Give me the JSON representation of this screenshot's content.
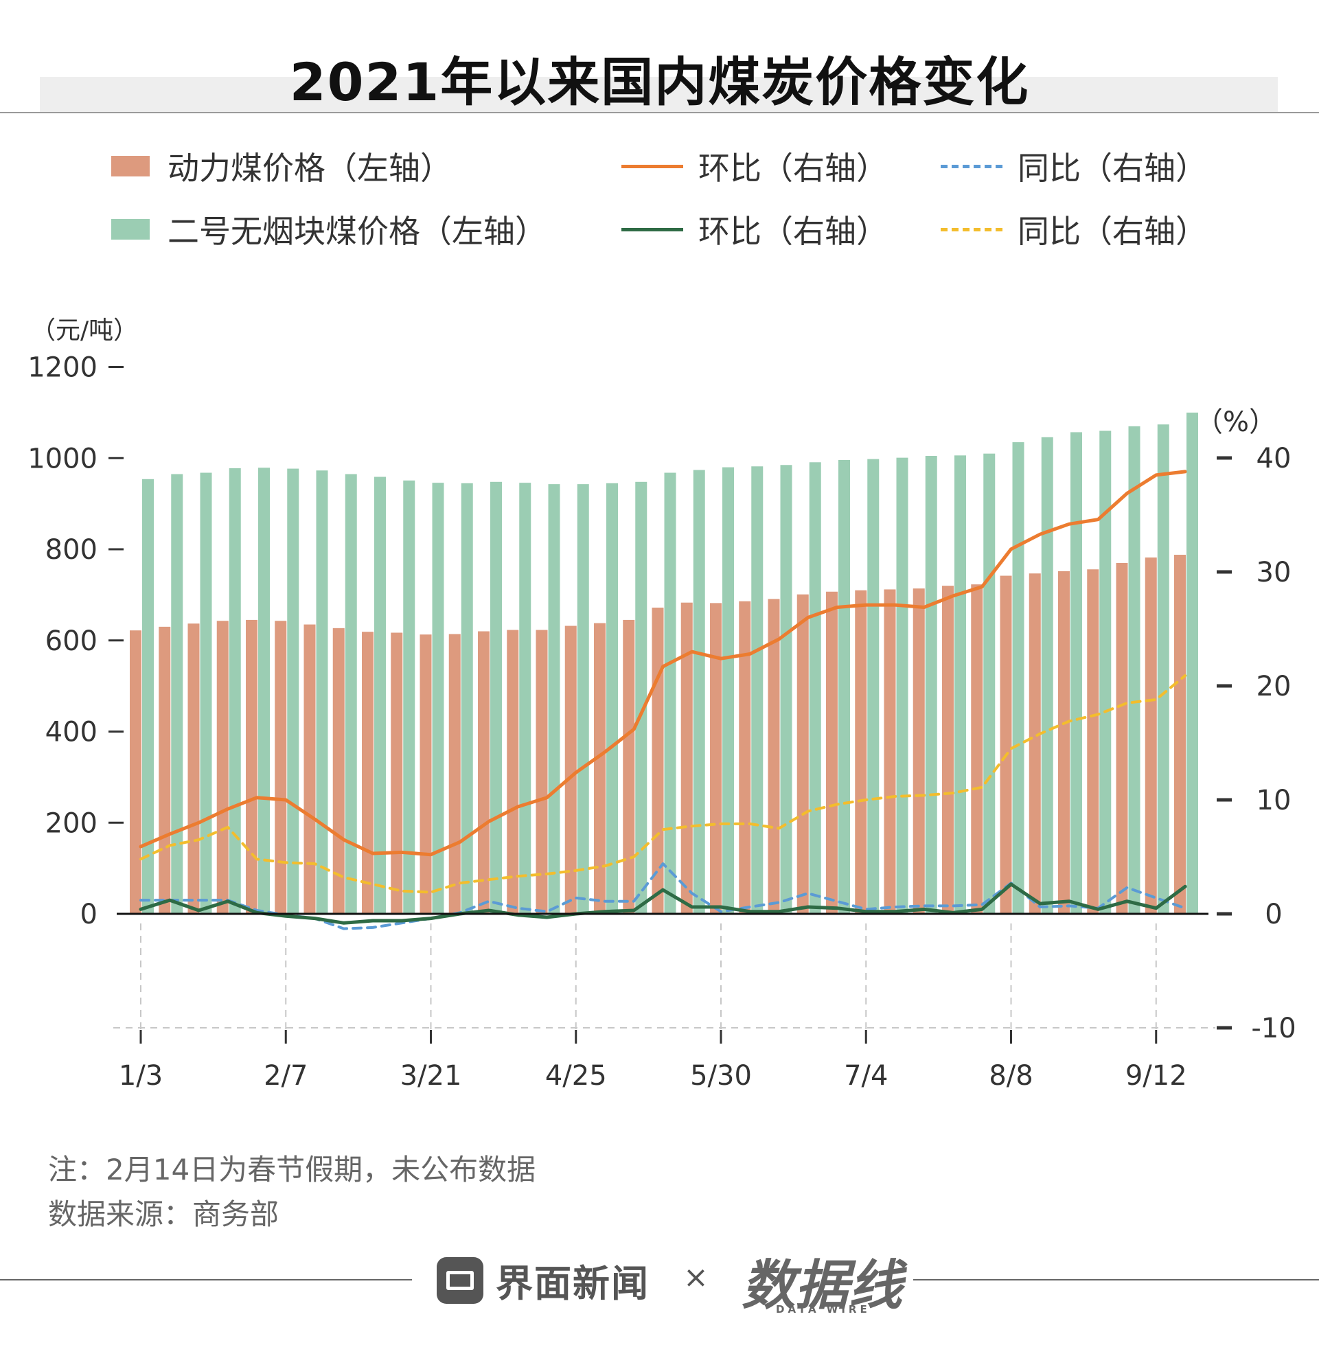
{
  "title": "2021年以来国内煤炭价格变化",
  "legend": {
    "item1": "动力煤价格（左轴）",
    "item2": "环比（右轴）",
    "item3": "同比（右轴）",
    "item4": "二号无烟块煤价格（左轴）",
    "item5": "环比（右轴）",
    "item6": "同比（右轴）"
  },
  "colors": {
    "power_bar": "#dd9a7e",
    "anthracite_bar": "#9bcdb3",
    "power_huanbi": "#ec7c30",
    "power_tongbi": "#5b9bd5",
    "anth_huanbi": "#2e6b45",
    "anth_tongbi": "#f3bd2d",
    "title_band": "#eeeeee"
  },
  "chart_data": {
    "type": "bar",
    "left_axis": {
      "unit": "（元/吨）",
      "ticks": [
        0,
        200,
        400,
        600,
        800,
        1000,
        1200
      ],
      "ylim": [
        0,
        1200
      ]
    },
    "right_axis": {
      "unit": "（%）",
      "ticks": [
        -10,
        0,
        10,
        20,
        30,
        40
      ],
      "ylim": [
        -10,
        40
      ]
    },
    "x_tick_labels": [
      "1/3",
      "2/7",
      "3/21",
      "4/25",
      "5/30",
      "7/4",
      "8/8",
      "9/12"
    ],
    "x_tick_indices": [
      0,
      5,
      10,
      15,
      20,
      25,
      30,
      35
    ],
    "series": [
      {
        "name": "动力煤价格（左轴）",
        "kind": "bar",
        "axis": "left",
        "values": [
          622,
          630,
          637,
          643,
          645,
          643,
          635,
          627,
          619,
          617,
          613,
          614,
          620,
          623,
          623,
          632,
          638,
          645,
          672,
          683,
          682,
          686,
          691,
          701,
          707,
          710,
          712,
          714,
          720,
          723,
          742,
          747,
          752,
          756,
          770,
          782,
          788
        ]
      },
      {
        "name": "二号无烟块煤价格（左轴）",
        "kind": "bar",
        "axis": "left",
        "values": [
          954,
          965,
          968,
          978,
          979,
          977,
          973,
          965,
          959,
          951,
          946,
          945,
          948,
          946,
          943,
          943,
          945,
          948,
          968,
          974,
          980,
          982,
          985,
          991,
          996,
          998,
          1001,
          1005,
          1006,
          1010,
          1035,
          1046,
          1057,
          1060,
          1070,
          1074,
          1100
        ]
      },
      {
        "name": "环比（右轴）",
        "kind": "line",
        "axis": "right",
        "values": [
          5.9,
          7.0,
          8.0,
          9.2,
          10.2,
          10.0,
          8.3,
          6.5,
          5.3,
          5.4,
          5.2,
          6.3,
          8.1,
          9.4,
          10.2,
          12.4,
          14.2,
          16.2,
          21.7,
          23.0,
          22.4,
          22.8,
          24.1,
          26.0,
          26.9,
          27.1,
          27.1,
          26.9,
          27.9,
          28.7,
          32.0,
          33.3,
          34.2,
          34.6,
          36.9,
          38.5,
          38.8
        ]
      },
      {
        "name": "同比（右轴）",
        "kind": "line",
        "axis": "right",
        "values": [
          1.2,
          1.2,
          1.2,
          1.2,
          0.3,
          -0.1,
          -0.4,
          -1.3,
          -1.2,
          -0.8,
          -0.4,
          0.1,
          1.1,
          0.5,
          0.2,
          1.4,
          1.1,
          1.1,
          4.4,
          1.8,
          0.2,
          0.6,
          1.0,
          1.8,
          1.1,
          0.4,
          0.6,
          0.7,
          0.7,
          0.8,
          2.7,
          0.6,
          0.7,
          0.5,
          2.3,
          1.4,
          0.5
        ]
      },
      {
        "name": "环比（右轴）",
        "kind": "line",
        "axis": "right",
        "values": [
          0.4,
          1.2,
          0.3,
          1.1,
          0.1,
          -0.2,
          -0.4,
          -0.8,
          -0.6,
          -0.6,
          -0.4,
          0.0,
          0.3,
          -0.1,
          -0.3,
          0.0,
          0.2,
          0.3,
          2.1,
          0.6,
          0.6,
          0.2,
          0.2,
          0.6,
          0.5,
          0.2,
          0.2,
          0.4,
          0.1,
          0.4,
          2.6,
          0.9,
          1.1,
          0.4,
          1.1,
          0.5,
          2.4
        ]
      },
      {
        "name": "同比（右轴）",
        "kind": "line",
        "axis": "right",
        "values": [
          4.8,
          6.0,
          6.5,
          7.6,
          4.8,
          4.5,
          4.4,
          3.2,
          2.6,
          2.0,
          1.9,
          2.7,
          3.0,
          3.3,
          3.5,
          3.8,
          4.2,
          5.0,
          7.4,
          7.7,
          7.9,
          7.9,
          7.5,
          9.0,
          9.6,
          10.0,
          10.3,
          10.4,
          10.6,
          11.1,
          14.5,
          15.8,
          16.9,
          17.5,
          18.5,
          18.8,
          20.9
        ]
      }
    ]
  },
  "notes": {
    "note1": "注：2月14日为春节假期，未公布数据",
    "note2": "数据来源：商务部"
  },
  "footer": {
    "brand_left": "界面新闻",
    "cross": "×",
    "brand_right": "数据线",
    "brand_right_sub": "DATA WIRE"
  }
}
